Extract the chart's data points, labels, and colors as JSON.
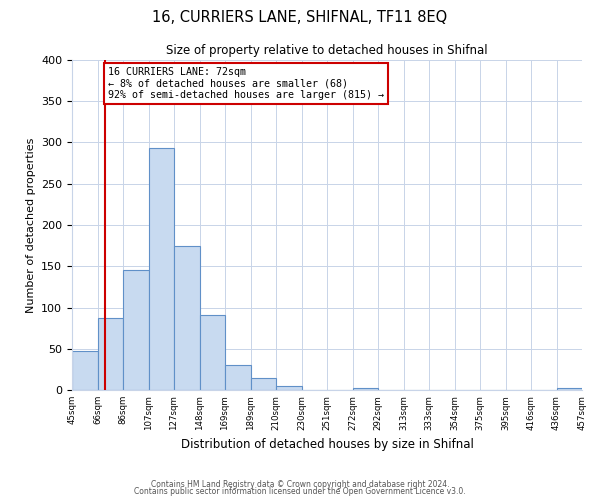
{
  "title": "16, CURRIERS LANE, SHIFNAL, TF11 8EQ",
  "subtitle": "Size of property relative to detached houses in Shifnal",
  "xlabel": "Distribution of detached houses by size in Shifnal",
  "ylabel": "Number of detached properties",
  "bar_heights": [
    47,
    87,
    145,
    293,
    175,
    91,
    30,
    15,
    5,
    0,
    0,
    2,
    0,
    0,
    0,
    0,
    0,
    0,
    0,
    2
  ],
  "bar_color": "#c8daf0",
  "bar_edge_color": "#6090c8",
  "tick_labels": [
    "45sqm",
    "66sqm",
    "86sqm",
    "107sqm",
    "127sqm",
    "148sqm",
    "169sqm",
    "189sqm",
    "210sqm",
    "230sqm",
    "251sqm",
    "272sqm",
    "292sqm",
    "313sqm",
    "333sqm",
    "354sqm",
    "375sqm",
    "395sqm",
    "416sqm",
    "436sqm",
    "457sqm"
  ],
  "property_line_x": 1.28,
  "property_line_color": "#cc0000",
  "annotation_text": "16 CURRIERS LANE: 72sqm\n← 8% of detached houses are smaller (68)\n92% of semi-detached houses are larger (815) →",
  "annotation_box_color": "#ffffff",
  "annotation_box_edge": "#cc0000",
  "ylim": [
    0,
    400
  ],
  "yticks": [
    0,
    50,
    100,
    150,
    200,
    250,
    300,
    350,
    400
  ],
  "footer_line1": "Contains HM Land Registry data © Crown copyright and database right 2024.",
  "footer_line2": "Contains public sector information licensed under the Open Government Licence v3.0.",
  "bg_color": "#ffffff",
  "grid_color": "#c8d4e8"
}
